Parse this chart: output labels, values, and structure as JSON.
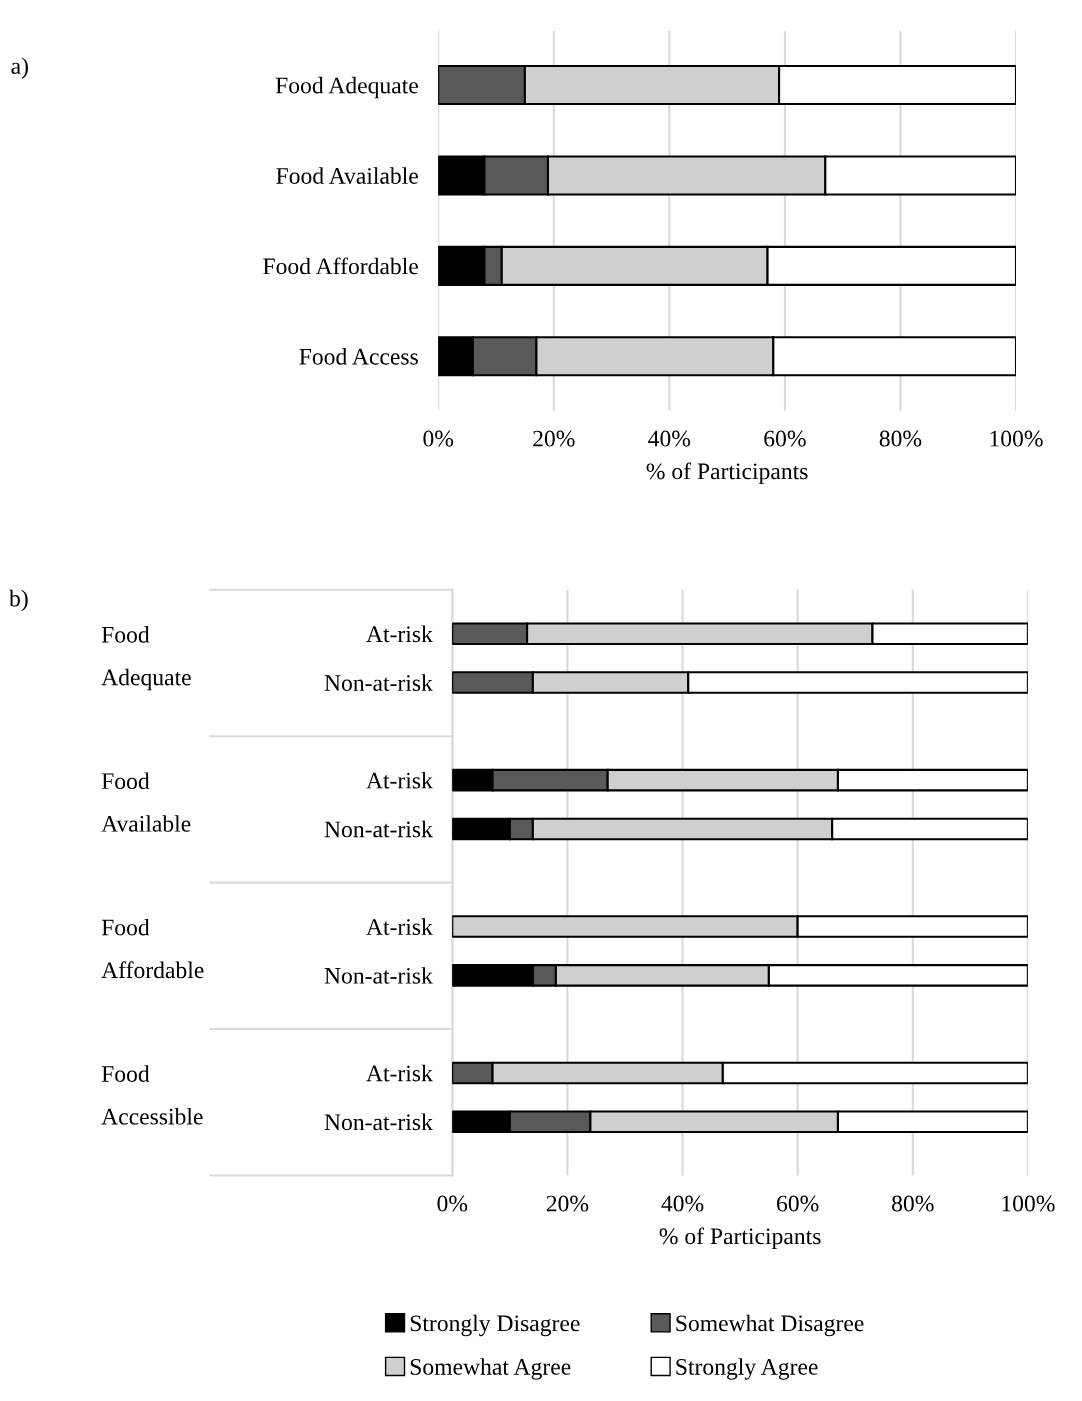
{
  "chart_data": [
    {
      "type": "bar",
      "orientation": "horizontal",
      "stacked": true,
      "xlabel": "% of Participants",
      "categories": [
        "Food Adequate",
        "Food Available",
        "Food Affordable",
        "Food Access"
      ],
      "series": [
        {
          "color": "#000000",
          "values": [
            0,
            8,
            8,
            6
          ]
        },
        {
          "color": "#595959",
          "values": [
            15,
            11,
            3,
            11
          ]
        },
        {
          "color": "#d0cece",
          "values": [
            44,
            48,
            46,
            41
          ]
        },
        {
          "color": "#ffffff",
          "values": [
            41,
            33,
            43,
            42
          ]
        }
      ],
      "xlim": [
        0,
        100
      ],
      "xticks": [
        {
          "value": 0,
          "label": "0%"
        },
        {
          "value": 20,
          "label": "20%"
        },
        {
          "value": 40,
          "label": "40%"
        },
        {
          "value": 60,
          "label": "60%"
        },
        {
          "value": 80,
          "label": "80%"
        },
        {
          "value": 100,
          "label": "100%"
        }
      ],
      "grid": "x",
      "legend": false,
      "annotations": [
        "a)"
      ]
    },
    {
      "type": "bar",
      "orientation": "horizontal",
      "stacked": true,
      "xlabel": "% of Participants",
      "categories": [
        "At-risk",
        "Non-at-risk",
        "At-risk",
        "Non-at-risk",
        "At-risk",
        "Non-at-risk",
        "At-risk",
        "Non-at-risk"
      ],
      "series": [
        {
          "name": "Strongly Disagree",
          "color": "#000000",
          "values": [
            0,
            0,
            7,
            10,
            0,
            14,
            0,
            10
          ]
        },
        {
          "name": "Somewhat Disagree",
          "color": "#595959",
          "values": [
            13,
            14,
            20,
            4,
            0,
            4,
            7,
            14
          ]
        },
        {
          "name": "Somewhat Agree",
          "color": "#d0cece",
          "values": [
            60,
            27,
            40,
            52,
            60,
            37,
            40,
            43
          ]
        },
        {
          "name": "Strongly Agree",
          "color": "#ffffff",
          "values": [
            27,
            59,
            33,
            34,
            40,
            45,
            53,
            33
          ]
        }
      ],
      "xlim": [
        0,
        100
      ],
      "xticks": [
        {
          "value": 0,
          "label": "0%"
        },
        {
          "value": 20,
          "label": "20%"
        },
        {
          "value": 40,
          "label": "40%"
        },
        {
          "value": 60,
          "label": "60%"
        },
        {
          "value": 80,
          "label": "80%"
        },
        {
          "value": 100,
          "label": "100%"
        }
      ],
      "grid": "x",
      "legend": "bottom",
      "annotations": [
        "b)",
        "Food\nAdequate",
        "Food\nAvailable",
        "Food\nAffordable",
        "Food\nAccessible"
      ]
    }
  ]
}
